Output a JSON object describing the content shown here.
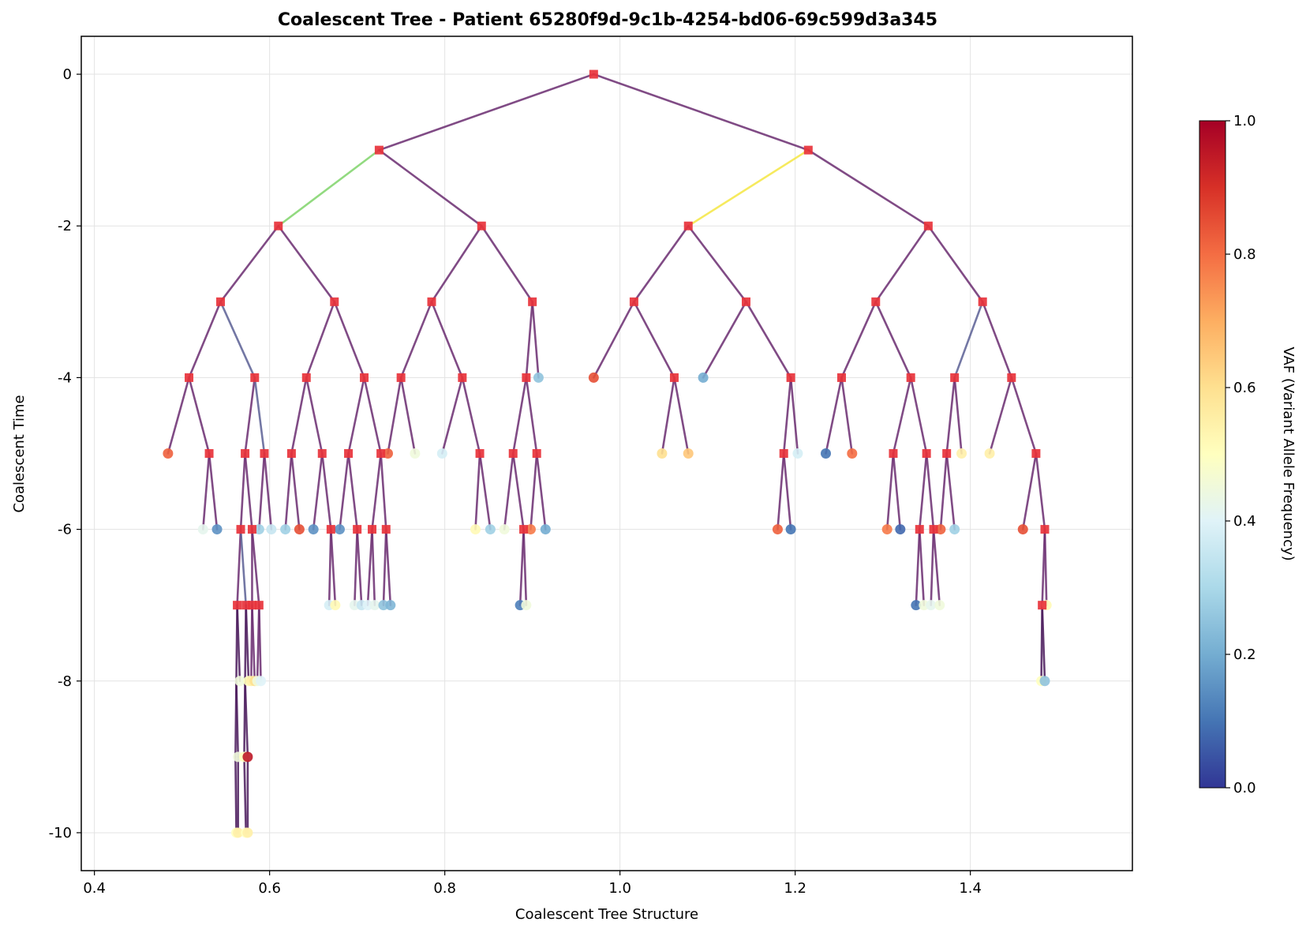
{
  "chart_data": {
    "type": "scatter",
    "title": "Coalescent Tree - Patient 65280f9d-9c1b-4254-bd06-69c599d3a345",
    "xlabel": "Coalescent Tree Structure",
    "ylabel": "Coalescent Time",
    "xlim": [
      0.385,
      1.585
    ],
    "ylim": [
      -10.5,
      0.5
    ],
    "grid": true,
    "x_ticks": [
      "0.4",
      "0.6",
      "0.8",
      "1.0",
      "1.2",
      "1.4"
    ],
    "y_ticks": [
      "0",
      "-2",
      "-4",
      "-6",
      "-8",
      "-10"
    ],
    "colorbar": {
      "label": "VAF (Variant Allele Frequency)",
      "range": [
        0,
        1
      ],
      "ticks": [
        "0.0",
        "0.2",
        "0.4",
        "0.6",
        "0.8",
        "1.0"
      ],
      "colors": [
        "#313695",
        "#4575b4",
        "#74add1",
        "#abd9e9",
        "#e0f3f8",
        "#ffffbf",
        "#fee090",
        "#fdae61",
        "#f46d43",
        "#d73027",
        "#a50026"
      ]
    },
    "internal_nodes": [
      [
        0.97,
        0
      ],
      [
        0.725,
        -1
      ],
      [
        1.215,
        -1
      ],
      [
        0.61,
        -2
      ],
      [
        0.842,
        -2
      ],
      [
        1.078,
        -2
      ],
      [
        1.352,
        -2
      ],
      [
        0.544,
        -3
      ],
      [
        0.674,
        -3
      ],
      [
        0.785,
        -3
      ],
      [
        0.9,
        -3
      ],
      [
        1.016,
        -3
      ],
      [
        1.144,
        -3
      ],
      [
        1.292,
        -3
      ],
      [
        1.414,
        -3
      ],
      [
        0.508,
        -4
      ],
      [
        0.583,
        -4
      ],
      [
        0.642,
        -4
      ],
      [
        0.708,
        -4
      ],
      [
        0.75,
        -4
      ],
      [
        0.82,
        -4
      ],
      [
        0.893,
        -4
      ],
      [
        1.062,
        -4
      ],
      [
        1.195,
        -4
      ],
      [
        1.253,
        -4
      ],
      [
        1.332,
        -4
      ],
      [
        1.382,
        -4
      ],
      [
        1.447,
        -4
      ],
      [
        0.531,
        -5
      ],
      [
        0.572,
        -5
      ],
      [
        0.594,
        -5
      ],
      [
        0.625,
        -5
      ],
      [
        0.66,
        -5
      ],
      [
        0.69,
        -5
      ],
      [
        0.727,
        -5
      ],
      [
        0.84,
        -5
      ],
      [
        0.878,
        -5
      ],
      [
        0.905,
        -5
      ],
      [
        1.187,
        -5
      ],
      [
        1.312,
        -5
      ],
      [
        1.35,
        -5
      ],
      [
        1.373,
        -5
      ],
      [
        1.475,
        -5
      ],
      [
        0.567,
        -6
      ],
      [
        0.58,
        -6
      ],
      [
        0.67,
        -6
      ],
      [
        0.7,
        -6
      ],
      [
        0.717,
        -6
      ],
      [
        0.733,
        -6
      ],
      [
        0.89,
        -6
      ],
      [
        1.342,
        -6
      ],
      [
        1.358,
        -6
      ],
      [
        1.485,
        -6
      ],
      [
        0.563,
        -7
      ],
      [
        0.573,
        -7
      ],
      [
        0.58,
        -7
      ],
      [
        0.588,
        -7
      ],
      [
        1.482,
        -7
      ]
    ],
    "edges": [
      [
        0.97,
        0,
        0.725,
        -1,
        "#6a2c70"
      ],
      [
        0.97,
        0,
        1.215,
        -1,
        "#6a2c70"
      ],
      [
        0.725,
        -1,
        0.61,
        -2,
        "#7fd36a"
      ],
      [
        0.725,
        -1,
        0.842,
        -2,
        "#6a2c70"
      ],
      [
        1.215,
        -1,
        1.078,
        -2,
        "#f5e642"
      ],
      [
        1.215,
        -1,
        1.352,
        -2,
        "#6a2c70"
      ],
      [
        0.61,
        -2,
        0.544,
        -3,
        "#6a2c70"
      ],
      [
        0.61,
        -2,
        0.674,
        -3,
        "#6a2c70"
      ],
      [
        0.842,
        -2,
        0.785,
        -3,
        "#6a2c70"
      ],
      [
        0.842,
        -2,
        0.9,
        -3,
        "#6a2c70"
      ],
      [
        1.078,
        -2,
        1.016,
        -3,
        "#6a2c70"
      ],
      [
        1.078,
        -2,
        1.144,
        -3,
        "#6a2c70"
      ],
      [
        1.352,
        -2,
        1.292,
        -3,
        "#6a2c70"
      ],
      [
        1.352,
        -2,
        1.414,
        -3,
        "#6a2c70"
      ],
      [
        0.544,
        -3,
        0.508,
        -4,
        "#6a2c70"
      ],
      [
        0.544,
        -3,
        0.583,
        -4,
        "#5b5f94"
      ],
      [
        0.674,
        -3,
        0.642,
        -4,
        "#6a2c70"
      ],
      [
        0.674,
        -3,
        0.708,
        -4,
        "#6a2c70"
      ],
      [
        0.785,
        -3,
        0.75,
        -4,
        "#6a2c70"
      ],
      [
        0.785,
        -3,
        0.82,
        -4,
        "#6a2c70"
      ],
      [
        0.9,
        -3,
        0.893,
        -4,
        "#6a2c70"
      ],
      [
        0.9,
        -3,
        0.907,
        -4,
        "#6a2c70"
      ],
      [
        1.016,
        -3,
        0.97,
        -4,
        "#6a2c70"
      ],
      [
        1.016,
        -3,
        1.062,
        -4,
        "#6a2c70"
      ],
      [
        1.144,
        -3,
        1.095,
        -4,
        "#6a2c70"
      ],
      [
        1.144,
        -3,
        1.195,
        -4,
        "#6a2c70"
      ],
      [
        1.292,
        -3,
        1.253,
        -4,
        "#6a2c70"
      ],
      [
        1.292,
        -3,
        1.332,
        -4,
        "#6a2c70"
      ],
      [
        1.414,
        -3,
        1.382,
        -4,
        "#5b5f94"
      ],
      [
        1.414,
        -3,
        1.447,
        -4,
        "#6a2c70"
      ],
      [
        0.508,
        -4,
        0.484,
        -5,
        "#6a2c70"
      ],
      [
        0.508,
        -4,
        0.531,
        -5,
        "#6a2c70"
      ],
      [
        0.583,
        -4,
        0.572,
        -5,
        "#6a2c70"
      ],
      [
        0.583,
        -4,
        0.594,
        -5,
        "#5b5f94"
      ],
      [
        0.642,
        -4,
        0.625,
        -5,
        "#6a2c70"
      ],
      [
        0.642,
        -4,
        0.66,
        -5,
        "#6a2c70"
      ],
      [
        0.708,
        -4,
        0.69,
        -5,
        "#6a2c70"
      ],
      [
        0.708,
        -4,
        0.727,
        -5,
        "#6a2c70"
      ],
      [
        0.75,
        -4,
        0.735,
        -5,
        "#6a2c70"
      ],
      [
        0.75,
        -4,
        0.766,
        -5,
        "#6a2c70"
      ],
      [
        0.82,
        -4,
        0.797,
        -5,
        "#6a2c70"
      ],
      [
        0.82,
        -4,
        0.84,
        -5,
        "#6a2c70"
      ],
      [
        0.893,
        -4,
        0.878,
        -5,
        "#6a2c70"
      ],
      [
        0.893,
        -4,
        0.905,
        -5,
        "#6a2c70"
      ],
      [
        1.062,
        -4,
        1.048,
        -5,
        "#6a2c70"
      ],
      [
        1.062,
        -4,
        1.078,
        -5,
        "#6a2c70"
      ],
      [
        1.195,
        -4,
        1.187,
        -5,
        "#6a2c70"
      ],
      [
        1.195,
        -4,
        1.203,
        -5,
        "#6a2c70"
      ],
      [
        1.253,
        -4,
        1.235,
        -5,
        "#6a2c70"
      ],
      [
        1.253,
        -4,
        1.265,
        -5,
        "#6a2c70"
      ],
      [
        1.332,
        -4,
        1.312,
        -5,
        "#6a2c70"
      ],
      [
        1.332,
        -4,
        1.35,
        -5,
        "#6a2c70"
      ],
      [
        1.382,
        -4,
        1.373,
        -5,
        "#6a2c70"
      ],
      [
        1.382,
        -4,
        1.39,
        -5,
        "#6a2c70"
      ],
      [
        1.447,
        -4,
        1.422,
        -5,
        "#6a2c70"
      ],
      [
        1.447,
        -4,
        1.475,
        -5,
        "#6a2c70"
      ],
      [
        0.531,
        -5,
        0.524,
        -6,
        "#6a2c70"
      ],
      [
        0.531,
        -5,
        0.54,
        -6,
        "#6a2c70"
      ],
      [
        0.572,
        -5,
        0.567,
        -6,
        "#6a2c70"
      ],
      [
        0.572,
        -5,
        0.58,
        -6,
        "#6a2c70"
      ],
      [
        0.594,
        -5,
        0.588,
        -6,
        "#6a2c70"
      ],
      [
        0.594,
        -5,
        0.602,
        -6,
        "#6a2c70"
      ],
      [
        0.625,
        -5,
        0.618,
        -6,
        "#6a2c70"
      ],
      [
        0.625,
        -5,
        0.634,
        -6,
        "#6a2c70"
      ],
      [
        0.66,
        -5,
        0.65,
        -6,
        "#6a2c70"
      ],
      [
        0.66,
        -5,
        0.67,
        -6,
        "#6a2c70"
      ],
      [
        0.69,
        -5,
        0.68,
        -6,
        "#6a2c70"
      ],
      [
        0.69,
        -5,
        0.7,
        -6,
        "#6a2c70"
      ],
      [
        0.727,
        -5,
        0.717,
        -6,
        "#6a2c70"
      ],
      [
        0.727,
        -5,
        0.733,
        -6,
        "#6a2c70"
      ],
      [
        0.84,
        -5,
        0.835,
        -6,
        "#6a2c70"
      ],
      [
        0.84,
        -5,
        0.852,
        -6,
        "#6a2c70"
      ],
      [
        0.878,
        -5,
        0.868,
        -6,
        "#6a2c70"
      ],
      [
        0.878,
        -5,
        0.89,
        -6,
        "#6a2c70"
      ],
      [
        0.905,
        -5,
        0.898,
        -6,
        "#6a2c70"
      ],
      [
        0.905,
        -5,
        0.915,
        -6,
        "#6a2c70"
      ],
      [
        1.187,
        -5,
        1.18,
        -6,
        "#6a2c70"
      ],
      [
        1.187,
        -5,
        1.195,
        -6,
        "#6a2c70"
      ],
      [
        1.312,
        -5,
        1.305,
        -6,
        "#6a2c70"
      ],
      [
        1.312,
        -5,
        1.32,
        -6,
        "#6a2c70"
      ],
      [
        1.35,
        -5,
        1.342,
        -6,
        "#6a2c70"
      ],
      [
        1.35,
        -5,
        1.358,
        -6,
        "#6a2c70"
      ],
      [
        1.373,
        -5,
        1.366,
        -6,
        "#6a2c70"
      ],
      [
        1.373,
        -5,
        1.382,
        -6,
        "#6a2c70"
      ],
      [
        1.475,
        -5,
        1.46,
        -6,
        "#6a2c70"
      ],
      [
        1.475,
        -5,
        1.485,
        -6,
        "#6a2c70"
      ],
      [
        0.567,
        -6,
        0.563,
        -7,
        "#6a2c70"
      ],
      [
        0.567,
        -6,
        0.573,
        -7,
        "#5b5f94"
      ],
      [
        0.58,
        -6,
        0.58,
        -7,
        "#6a2c70"
      ],
      [
        0.58,
        -6,
        0.588,
        -7,
        "#6a2c70"
      ],
      [
        0.67,
        -6,
        0.668,
        -7,
        "#6a2c70"
      ],
      [
        0.67,
        -6,
        0.675,
        -7,
        "#6a2c70"
      ],
      [
        0.7,
        -6,
        0.697,
        -7,
        "#6a2c70"
      ],
      [
        0.7,
        -6,
        0.705,
        -7,
        "#6a2c70"
      ],
      [
        0.717,
        -6,
        0.712,
        -7,
        "#6a2c70"
      ],
      [
        0.717,
        -6,
        0.72,
        -7,
        "#6a2c70"
      ],
      [
        0.733,
        -6,
        0.73,
        -7,
        "#6a2c70"
      ],
      [
        0.733,
        -6,
        0.738,
        -7,
        "#6a2c70"
      ],
      [
        0.89,
        -6,
        0.886,
        -7,
        "#6a2c70"
      ],
      [
        0.89,
        -6,
        0.893,
        -7,
        "#6a2c70"
      ],
      [
        1.342,
        -6,
        1.338,
        -7,
        "#6a2c70"
      ],
      [
        1.342,
        -6,
        1.347,
        -7,
        "#6a2c70"
      ],
      [
        1.358,
        -6,
        1.355,
        -7,
        "#6a2c70"
      ],
      [
        1.358,
        -6,
        1.365,
        -7,
        "#6a2c70"
      ],
      [
        1.485,
        -6,
        1.482,
        -7,
        "#6a2c70"
      ],
      [
        1.485,
        -6,
        1.487,
        -7,
        "#6a2c70"
      ],
      [
        0.563,
        -7,
        0.562,
        -8,
        "#4a1a5c"
      ],
      [
        0.563,
        -7,
        0.566,
        -8,
        "#4a1a5c"
      ],
      [
        0.573,
        -7,
        0.572,
        -8,
        "#4a1a5c"
      ],
      [
        0.573,
        -7,
        0.576,
        -8,
        "#4a1a5c"
      ],
      [
        0.58,
        -7,
        0.579,
        -8,
        "#6a2c70"
      ],
      [
        0.58,
        -7,
        0.583,
        -8,
        "#6a2c70"
      ],
      [
        0.588,
        -7,
        0.586,
        -8,
        "#6a2c70"
      ],
      [
        0.588,
        -7,
        0.59,
        -8,
        "#6a2c70"
      ],
      [
        1.482,
        -7,
        1.481,
        -8,
        "#4a1a5c"
      ],
      [
        1.482,
        -7,
        1.485,
        -8,
        "#4a1a5c"
      ],
      [
        0.562,
        -8,
        0.561,
        -9,
        "#4a1a5c"
      ],
      [
        0.562,
        -8,
        0.564,
        -9,
        "#4a1a5c"
      ],
      [
        0.572,
        -8,
        0.571,
        -9,
        "#4a1a5c"
      ],
      [
        0.572,
        -8,
        0.575,
        -9,
        "#4a1a5c"
      ],
      [
        0.561,
        -9,
        0.562,
        -10,
        "#4a1a5c"
      ],
      [
        0.564,
        -9,
        0.564,
        -10,
        "#4a1a5c"
      ],
      [
        0.571,
        -9,
        0.573,
        -10,
        "#4a1a5c"
      ],
      [
        0.575,
        -9,
        0.575,
        -10,
        "#4a1a5c"
      ]
    ],
    "leaves": [
      [
        0.907,
        -4,
        0.25
      ],
      [
        0.97,
        -4,
        0.85
      ],
      [
        1.095,
        -4,
        0.2
      ],
      [
        0.484,
        -5,
        0.82
      ],
      [
        0.735,
        -5,
        0.82
      ],
      [
        0.766,
        -5,
        0.45
      ],
      [
        0.797,
        -5,
        0.38
      ],
      [
        1.048,
        -5,
        0.6
      ],
      [
        1.078,
        -5,
        0.65
      ],
      [
        1.203,
        -5,
        0.38
      ],
      [
        1.235,
        -5,
        0.1
      ],
      [
        1.265,
        -5,
        0.8
      ],
      [
        1.39,
        -5,
        0.55
      ],
      [
        1.422,
        -5,
        0.55
      ],
      [
        0.524,
        -6,
        0.42
      ],
      [
        0.54,
        -6,
        0.15
      ],
      [
        0.588,
        -6,
        0.28
      ],
      [
        0.602,
        -6,
        0.35
      ],
      [
        0.618,
        -6,
        0.28
      ],
      [
        0.634,
        -6,
        0.85
      ],
      [
        0.65,
        -6,
        0.15
      ],
      [
        0.68,
        -6,
        0.15
      ],
      [
        0.835,
        -6,
        0.52
      ],
      [
        0.852,
        -6,
        0.28
      ],
      [
        0.868,
        -6,
        0.45
      ],
      [
        0.898,
        -6,
        0.78
      ],
      [
        0.915,
        -6,
        0.2
      ],
      [
        1.18,
        -6,
        0.82
      ],
      [
        1.195,
        -6,
        0.1
      ],
      [
        1.305,
        -6,
        0.78
      ],
      [
        1.32,
        -6,
        0.08
      ],
      [
        1.366,
        -6,
        0.82
      ],
      [
        1.382,
        -6,
        0.28
      ],
      [
        1.46,
        -6,
        0.85
      ],
      [
        0.668,
        -7,
        0.38
      ],
      [
        0.675,
        -7,
        0.52
      ],
      [
        0.697,
        -7,
        0.42
      ],
      [
        0.705,
        -7,
        0.35
      ],
      [
        0.712,
        -7,
        0.4
      ],
      [
        0.72,
        -7,
        0.42
      ],
      [
        0.73,
        -7,
        0.25
      ],
      [
        0.738,
        -7,
        0.22
      ],
      [
        0.886,
        -7,
        0.12
      ],
      [
        0.893,
        -7,
        0.45
      ],
      [
        1.338,
        -7,
        0.1
      ],
      [
        1.347,
        -7,
        0.45
      ],
      [
        1.355,
        -7,
        0.42
      ],
      [
        1.365,
        -7,
        0.45
      ],
      [
        1.487,
        -7,
        0.52
      ],
      [
        0.566,
        -8,
        0.45
      ],
      [
        0.576,
        -8,
        0.5
      ],
      [
        0.579,
        -8,
        0.55
      ],
      [
        0.583,
        -8,
        0.6
      ],
      [
        0.586,
        -8,
        0.45
      ],
      [
        0.59,
        -8,
        0.4
      ],
      [
        1.481,
        -8,
        0.5
      ],
      [
        1.485,
        -8,
        0.25
      ],
      [
        0.564,
        -9,
        0.45
      ],
      [
        0.571,
        -9,
        0.5
      ],
      [
        0.575,
        -9,
        0.95
      ],
      [
        0.562,
        -10,
        0.5
      ],
      [
        0.564,
        -10,
        0.55
      ],
      [
        0.573,
        -10,
        0.5
      ],
      [
        0.575,
        -10,
        0.55
      ]
    ]
  }
}
